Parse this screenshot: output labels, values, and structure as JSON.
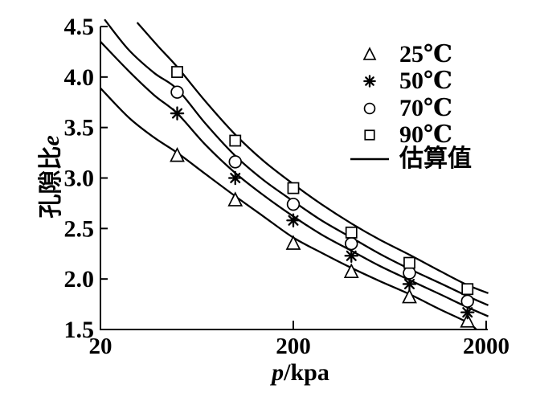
{
  "chart_data": {
    "type": "scatter",
    "title": "",
    "xlabel": "p/kpa",
    "xlabel_var": "p",
    "xlabel_unit": "/kpa",
    "ylabel": "孔隙比e",
    "ylabel_cjk": "孔隙比",
    "ylabel_var": "e",
    "xscale": "log",
    "grid": false,
    "legend_position": "upper-right",
    "xlim": [
      20,
      2000
    ],
    "ylim": [
      1.5,
      4.5
    ],
    "xticks": [
      {
        "v": 20,
        "label": "20",
        "mark": false
      },
      {
        "v": 200,
        "label": "200",
        "mark": true
      },
      {
        "v": 2000,
        "label": "2000",
        "mark": true
      }
    ],
    "yticks": [
      {
        "v": 1.5,
        "label": "1.5"
      },
      {
        "v": 2.0,
        "label": "2.0"
      },
      {
        "v": 2.5,
        "label": "2.5"
      },
      {
        "v": 3.0,
        "label": "3.0"
      },
      {
        "v": 3.5,
        "label": "3.5"
      },
      {
        "v": 4.0,
        "label": "4.0"
      },
      {
        "v": 4.5,
        "label": "4.5"
      }
    ],
    "x": [
      50,
      100,
      200,
      400,
      800,
      1600
    ],
    "series": [
      {
        "name": "25℃",
        "marker": "triangle",
        "values": [
          3.22,
          2.78,
          2.35,
          2.07,
          1.82,
          1.58
        ]
      },
      {
        "name": "50℃",
        "marker": "asterisk",
        "values": [
          3.64,
          3.0,
          2.58,
          2.23,
          1.95,
          1.67
        ]
      },
      {
        "name": "70℃",
        "marker": "circle",
        "values": [
          3.85,
          3.16,
          2.74,
          2.35,
          2.06,
          1.78
        ]
      },
      {
        "name": "90℃",
        "marker": "square",
        "values": [
          4.05,
          3.37,
          2.9,
          2.46,
          2.16,
          1.9
        ]
      }
    ],
    "fit_label": "估算值",
    "fitted_curves": [
      {
        "name": "25℃",
        "points": [
          [
            20,
            3.89
          ],
          [
            28,
            3.6
          ],
          [
            38,
            3.4
          ],
          [
            50,
            3.25
          ],
          [
            70,
            3.04
          ],
          [
            100,
            2.82
          ],
          [
            140,
            2.62
          ],
          [
            200,
            2.41
          ],
          [
            280,
            2.26
          ],
          [
            400,
            2.11
          ],
          [
            560,
            1.98
          ],
          [
            800,
            1.85
          ],
          [
            1150,
            1.7
          ],
          [
            1600,
            1.57
          ],
          [
            1780,
            1.5
          ]
        ]
      },
      {
        "name": "50℃",
        "points": [
          [
            20,
            4.35
          ],
          [
            28,
            4.06
          ],
          [
            38,
            3.82
          ],
          [
            50,
            3.64
          ],
          [
            70,
            3.33
          ],
          [
            100,
            3.05
          ],
          [
            140,
            2.83
          ],
          [
            200,
            2.62
          ],
          [
            280,
            2.44
          ],
          [
            400,
            2.28
          ],
          [
            560,
            2.13
          ],
          [
            800,
            1.99
          ],
          [
            1150,
            1.85
          ],
          [
            1600,
            1.72
          ],
          [
            2050,
            1.63
          ]
        ]
      },
      {
        "name": "70℃",
        "points": [
          [
            21,
            4.57
          ],
          [
            28,
            4.27
          ],
          [
            38,
            4.04
          ],
          [
            50,
            3.88
          ],
          [
            70,
            3.54
          ],
          [
            100,
            3.22
          ],
          [
            140,
            2.98
          ],
          [
            200,
            2.77
          ],
          [
            280,
            2.58
          ],
          [
            400,
            2.41
          ],
          [
            560,
            2.25
          ],
          [
            800,
            2.1
          ],
          [
            1150,
            1.96
          ],
          [
            1600,
            1.83
          ],
          [
            2050,
            1.74
          ]
        ]
      },
      {
        "name": "90℃",
        "points": [
          [
            31,
            4.54
          ],
          [
            40,
            4.3
          ],
          [
            50,
            4.1
          ],
          [
            70,
            3.76
          ],
          [
            100,
            3.43
          ],
          [
            140,
            3.17
          ],
          [
            200,
            2.94
          ],
          [
            280,
            2.74
          ],
          [
            400,
            2.55
          ],
          [
            560,
            2.39
          ],
          [
            800,
            2.24
          ],
          [
            1150,
            2.08
          ],
          [
            1600,
            1.94
          ],
          [
            2050,
            1.86
          ]
        ]
      }
    ]
  }
}
